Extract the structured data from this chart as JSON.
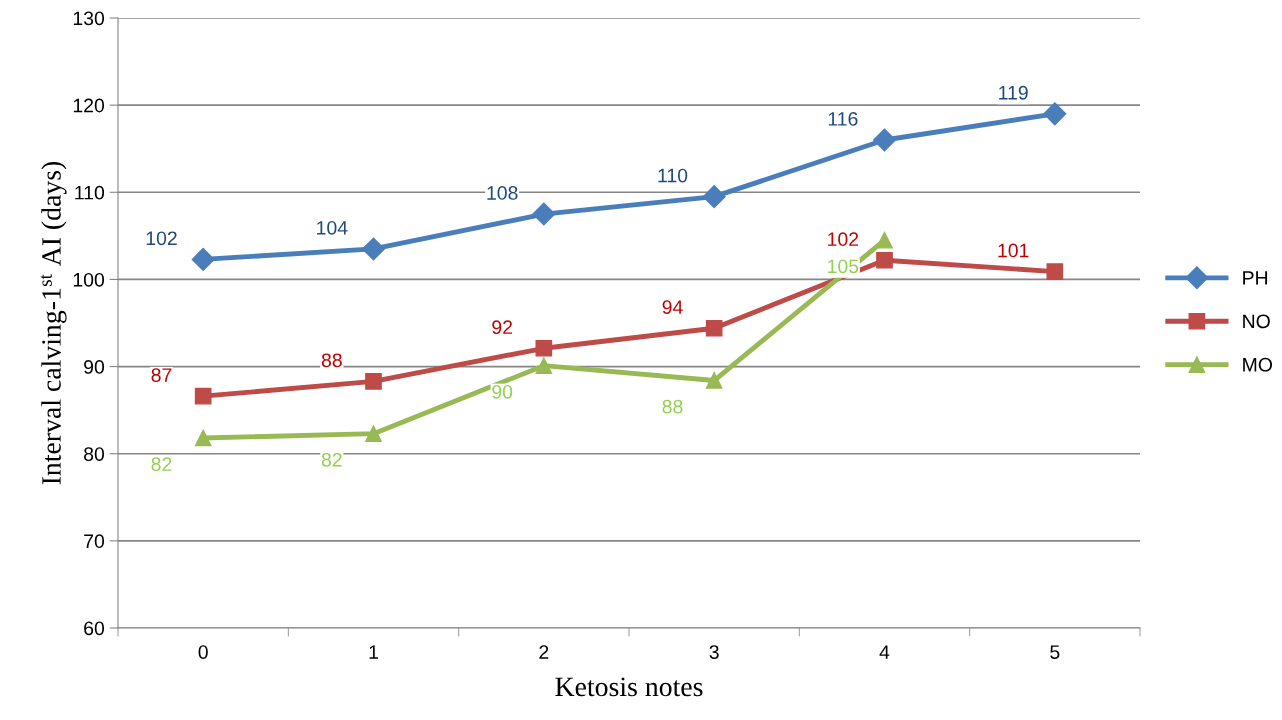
{
  "chart_data": {
    "type": "line",
    "xlabel": "Ketosis notes",
    "ylabel": "Interval calving-1$^{st}$ AI (days)",
    "categories": [
      "0",
      "1",
      "2",
      "3",
      "4",
      "5"
    ],
    "series": [
      {
        "name": "PH",
        "color": "#4a7ebb",
        "marker": "diamond",
        "values": [
          102.3,
          103.5,
          107.5,
          109.5,
          116.0,
          119.0
        ],
        "value_labels": [
          "102",
          "104",
          "108",
          "110",
          "116",
          "119"
        ]
      },
      {
        "name": "NO",
        "color": "#be4b48",
        "marker": "square",
        "values": [
          86.6,
          88.3,
          92.1,
          94.4,
          102.2,
          100.9
        ],
        "value_labels": [
          "87",
          "88",
          "92",
          "94",
          "102",
          "101"
        ]
      },
      {
        "name": "MO",
        "color": "#98b954",
        "marker": "triangle",
        "values": [
          81.8,
          82.3,
          90.1,
          88.4,
          104.5,
          null
        ],
        "value_labels": [
          "82",
          "82",
          "90",
          "88",
          "105",
          null
        ]
      }
    ],
    "ylim": [
      60,
      130
    ],
    "yticks": [
      60,
      70,
      80,
      90,
      100,
      110,
      120,
      130
    ],
    "grid": "y",
    "legend": "right",
    "line_style": "solid"
  }
}
